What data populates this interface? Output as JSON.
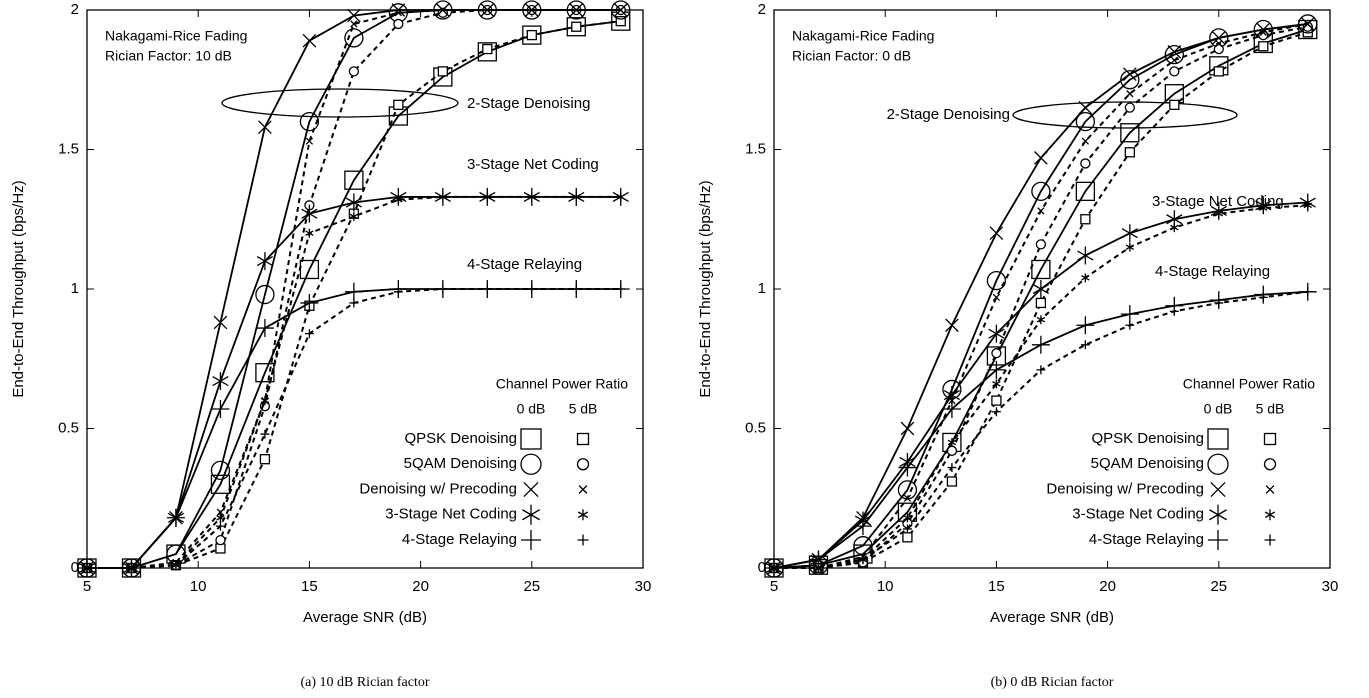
{
  "chart_data": [
    {
      "type": "line",
      "caption": "(a) 10 dB Rician factor",
      "x_label": "Average SNR (dB)",
      "y_label": "End-to-End Throughput (bps/Hz)",
      "annotations": [
        "Nakagami-Rice Fading",
        "Rician Factor: 10 dB",
        "2-Stage Denoising",
        "3-Stage Net Coding",
        "4-Stage Relaying"
      ],
      "xlim": [
        5,
        30
      ],
      "ylim": [
        0,
        2
      ],
      "xticks": [
        5,
        10,
        15,
        20,
        25,
        30
      ],
      "yticks": [
        0,
        0.5,
        1,
        1.5,
        2
      ],
      "color": "#000000",
      "line_styles": [
        "solid",
        "dashed"
      ],
      "legend": {
        "title": "Channel Power Ratio",
        "columns": [
          "0 dB",
          "5 dB"
        ]
      },
      "x": [
        5,
        7,
        9,
        11,
        13,
        15,
        17,
        19,
        21,
        23,
        25,
        27,
        29
      ],
      "series": [
        {
          "name": "QPSK Denoising",
          "marker": "square",
          "curves": [
            {
              "values": [
                0,
                0,
                0.05,
                0.3,
                0.7,
                1.07,
                1.39,
                1.62,
                1.76,
                1.85,
                1.91,
                1.94,
                1.96
              ]
            },
            {
              "values": [
                0,
                0,
                0.01,
                0.07,
                0.39,
                0.94,
                1.27,
                1.66,
                1.78,
                1.86,
                1.91,
                1.94,
                1.96
              ]
            }
          ]
        },
        {
          "name": "5QAM Denoising",
          "marker": "circle",
          "curves": [
            {
              "values": [
                0,
                0,
                0.05,
                0.35,
                0.98,
                1.6,
                1.9,
                1.99,
                2,
                2,
                2,
                2,
                2
              ]
            },
            {
              "values": [
                0,
                0,
                0.01,
                0.1,
                0.58,
                1.3,
                1.78,
                1.95,
                1.99,
                2,
                2,
                2,
                2
              ]
            }
          ]
        },
        {
          "name": "Denoising w/ Precoding",
          "marker": "x",
          "curves": [
            {
              "values": [
                0,
                0,
                0.18,
                0.88,
                1.58,
                1.89,
                1.98,
                2,
                2,
                2,
                2,
                2,
                2
              ]
            },
            {
              "values": [
                0,
                0,
                0.02,
                0.2,
                0.6,
                1.53,
                1.95,
                1.99,
                2,
                2,
                2,
                2,
                2
              ]
            }
          ]
        },
        {
          "name": "3-Stage Net Coding",
          "marker": "asterisk",
          "curves": [
            {
              "values": [
                0,
                0,
                0.18,
                0.67,
                1.1,
                1.27,
                1.31,
                1.33,
                1.33,
                1.33,
                1.33,
                1.33,
                1.33
              ]
            },
            {
              "values": [
                0,
                0,
                0.01,
                0.18,
                0.6,
                1.2,
                1.26,
                1.32,
                1.33,
                1.33,
                1.33,
                1.33,
                1.33
              ]
            }
          ]
        },
        {
          "name": "4-Stage Relaying",
          "marker": "plus",
          "curves": [
            {
              "values": [
                0,
                0,
                0.18,
                0.57,
                0.86,
                0.95,
                0.99,
                1,
                1,
                1,
                1,
                1,
                1
              ]
            },
            {
              "values": [
                0,
                0,
                0.01,
                0.15,
                0.48,
                0.84,
                0.95,
                0.99,
                1,
                1,
                1,
                1,
                1
              ]
            }
          ]
        }
      ]
    },
    {
      "type": "line",
      "caption": "(b) 0 dB Rician factor",
      "x_label": "Average SNR (dB)",
      "y_label": "End-to-End Throughput (bps/Hz)",
      "annotations": [
        "Nakagami-Rice Fading",
        "Rician Factor: 0 dB",
        "2-Stage Denoising",
        "3-Stage Net Coding",
        "4-Stage Relaying"
      ],
      "xlim": [
        5,
        30
      ],
      "ylim": [
        0,
        2
      ],
      "xticks": [
        5,
        10,
        15,
        20,
        25,
        30
      ],
      "yticks": [
        0,
        0.5,
        1,
        1.5,
        2
      ],
      "color": "#000000",
      "line_styles": [
        "solid",
        "dashed"
      ],
      "legend": {
        "title": "Channel Power Ratio",
        "columns": [
          "0 dB",
          "5 dB"
        ]
      },
      "x": [
        5,
        7,
        9,
        11,
        13,
        15,
        17,
        19,
        21,
        23,
        25,
        27,
        29
      ],
      "series": [
        {
          "name": "QPSK Denoising",
          "marker": "square",
          "curves": [
            {
              "values": [
                0,
                0.01,
                0.05,
                0.2,
                0.45,
                0.76,
                1.07,
                1.35,
                1.56,
                1.7,
                1.8,
                1.88,
                1.93
              ]
            },
            {
              "values": [
                0,
                0,
                0.02,
                0.11,
                0.31,
                0.6,
                0.95,
                1.25,
                1.49,
                1.66,
                1.78,
                1.87,
                1.92
              ]
            }
          ]
        },
        {
          "name": "5QAM Denoising",
          "marker": "circle",
          "curves": [
            {
              "values": [
                0,
                0.01,
                0.08,
                0.28,
                0.64,
                1.03,
                1.35,
                1.6,
                1.75,
                1.84,
                1.9,
                1.93,
                1.95
              ]
            },
            {
              "values": [
                0,
                0,
                0.02,
                0.16,
                0.42,
                0.77,
                1.16,
                1.45,
                1.65,
                1.78,
                1.86,
                1.91,
                1.94
              ]
            }
          ]
        },
        {
          "name": "Denoising w/ Precoding",
          "marker": "x",
          "curves": [
            {
              "values": [
                0,
                0.03,
                0.18,
                0.5,
                0.87,
                1.2,
                1.47,
                1.65,
                1.77,
                1.85,
                1.9,
                1.93,
                1.95
              ]
            },
            {
              "values": [
                0,
                0,
                0.04,
                0.25,
                0.6,
                0.97,
                1.28,
                1.53,
                1.7,
                1.82,
                1.88,
                1.92,
                1.95
              ]
            }
          ]
        },
        {
          "name": "3-Stage Net Coding",
          "marker": "asterisk",
          "curves": [
            {
              "values": [
                0,
                0.03,
                0.17,
                0.38,
                0.62,
                0.84,
                1.0,
                1.12,
                1.2,
                1.25,
                1.28,
                1.3,
                1.31
              ]
            },
            {
              "values": [
                0,
                0,
                0.03,
                0.18,
                0.45,
                0.66,
                0.89,
                1.04,
                1.15,
                1.22,
                1.27,
                1.29,
                1.3
              ]
            }
          ]
        },
        {
          "name": "4-Stage Relaying",
          "marker": "plus",
          "curves": [
            {
              "values": [
                0,
                0.03,
                0.15,
                0.36,
                0.57,
                0.71,
                0.8,
                0.87,
                0.91,
                0.94,
                0.96,
                0.98,
                0.99
              ]
            },
            {
              "values": [
                0,
                0,
                0.03,
                0.14,
                0.36,
                0.56,
                0.71,
                0.8,
                0.87,
                0.92,
                0.95,
                0.97,
                0.99
              ]
            }
          ]
        }
      ]
    }
  ]
}
